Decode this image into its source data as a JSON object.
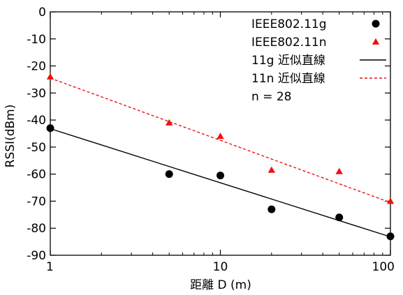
{
  "chart_data": {
    "type": "scatter",
    "xscale": "log",
    "xlim": [
      1,
      100
    ],
    "ylim": [
      -90,
      0
    ],
    "xlabel": "距離 D (m)",
    "ylabel": "RSSI(dBm)",
    "xticks": [
      1,
      10,
      100
    ],
    "xtick_labels": [
      "1",
      "10",
      "100"
    ],
    "yticks": [
      0,
      -10,
      -20,
      -30,
      -40,
      -50,
      -60,
      -70,
      -80,
      -90
    ],
    "ytick_labels": [
      "0",
      "-10",
      "-20",
      "-30",
      "-40",
      "-50",
      "-60",
      "-70",
      "-80",
      "-90"
    ],
    "grid": false,
    "legend_position": "top-right",
    "series": [
      {
        "name": "IEEE802.11g",
        "kind": "scatter",
        "marker": "circle",
        "color": "#000000",
        "x": [
          1,
          5,
          10,
          20,
          50,
          100
        ],
        "y": [
          -43,
          -60,
          -60.5,
          -73,
          -76,
          -83
        ]
      },
      {
        "name": "IEEE802.11n",
        "kind": "scatter",
        "marker": "triangle",
        "color": "#ee1111",
        "x": [
          1,
          5,
          10,
          20,
          50,
          100
        ],
        "y": [
          -24,
          -41,
          -46,
          -58.5,
          -59,
          -70
        ]
      },
      {
        "name": "11g 近似直線",
        "kind": "line",
        "style": "solid",
        "color": "#000000",
        "x": [
          1,
          100
        ],
        "y": [
          -43.2,
          -83.2
        ]
      },
      {
        "name": "11n 近似直線",
        "kind": "line",
        "style": "dashed",
        "color": "#ee1111",
        "x": [
          1,
          100
        ],
        "y": [
          -24.5,
          -70.5
        ]
      }
    ],
    "annotation": "n = 28"
  }
}
